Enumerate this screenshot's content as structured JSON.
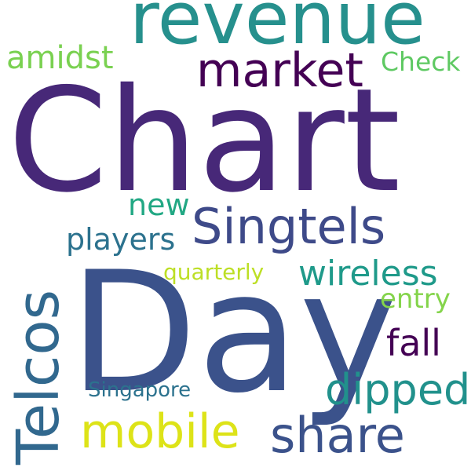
{
  "words": {
    "chart": {
      "text": "Chart",
      "color": "#472878"
    },
    "day": {
      "text": "Day",
      "color": "#3b528b"
    },
    "revenue": {
      "text": "revenue",
      "color": "#26908d"
    },
    "market": {
      "text": "market",
      "color": "#440154"
    },
    "amidst": {
      "text": "amidst",
      "color": "#7ad151"
    },
    "check": {
      "text": "Check",
      "color": "#5ec962"
    },
    "singtels": {
      "text": "Singtels",
      "color": "#3e4a89"
    },
    "telcos": {
      "text": "Telcos",
      "color": "#31688e"
    },
    "new": {
      "text": "new",
      "color": "#22a884"
    },
    "players": {
      "text": "players",
      "color": "#2c728e"
    },
    "wireless": {
      "text": "wireless",
      "color": "#1f9a8a"
    },
    "quarterly": {
      "text": "quarterly",
      "color": "#bddf26"
    },
    "entry": {
      "text": "entry",
      "color": "#84d44b"
    },
    "fall": {
      "text": "fall",
      "color": "#440154"
    },
    "dipped": {
      "text": "dipped",
      "color": "#21918c"
    },
    "singapore": {
      "text": "Singapore",
      "color": "#2c728e"
    },
    "mobile": {
      "text": "mobile",
      "color": "#dde318"
    },
    "share": {
      "text": "share",
      "color": "#3b528b"
    }
  }
}
